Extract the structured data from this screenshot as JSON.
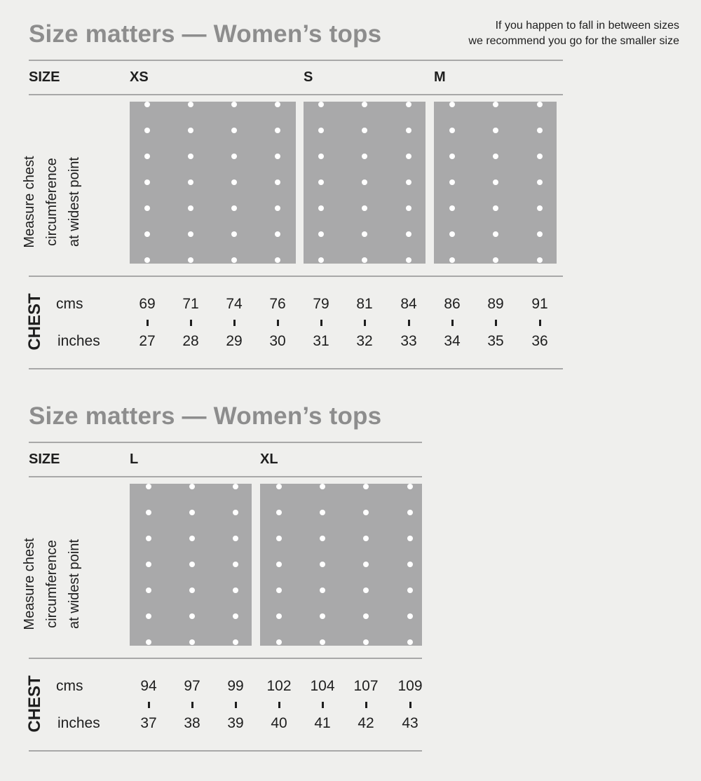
{
  "note": {
    "line1": "If you happen to fall in between sizes",
    "line2": "we recommend you go for the smaller size"
  },
  "sections": [
    {
      "title": "Size matters — Women’s tops",
      "size_label": "SIZE",
      "sizes": [
        "XS",
        "S",
        "M"
      ],
      "measure_lines": [
        "Measure chest",
        "circumference",
        "at widest point"
      ],
      "chest_label": "CHEST",
      "unit_cms": "cms",
      "unit_inches": "inches",
      "cms": [
        "69",
        "71",
        "74",
        "76",
        "79",
        "81",
        "84",
        "86",
        "89",
        "91"
      ],
      "inches": [
        "27",
        "28",
        "29",
        "30",
        "31",
        "32",
        "33",
        "34",
        "35",
        "36"
      ]
    },
    {
      "title": "Size matters — Women’s tops",
      "size_label": "SIZE",
      "sizes": [
        "L",
        "XL"
      ],
      "measure_lines": [
        "Measure chest",
        "circumference",
        "at widest point"
      ],
      "chest_label": "CHEST",
      "unit_cms": "cms",
      "unit_inches": "inches",
      "cms": [
        "94",
        "97",
        "99",
        "102",
        "104",
        "107",
        "109"
      ],
      "inches": [
        "37",
        "38",
        "39",
        "40",
        "41",
        "42",
        "43"
      ]
    }
  ],
  "colors": {
    "background": "#efefed",
    "title": "#8d8d8d",
    "panel": "#a9a9aa",
    "dot": "#ffffff",
    "text": "#1e1e1e",
    "rule": "#a8a8a8"
  }
}
